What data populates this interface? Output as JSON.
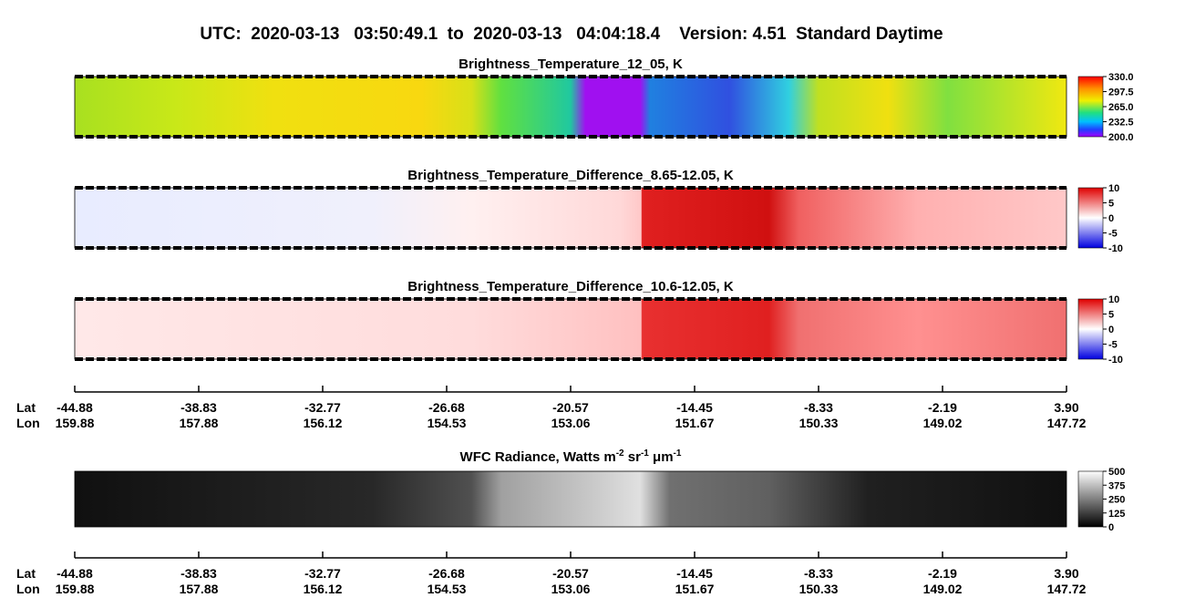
{
  "title": "UTC:  2020-03-13   03:50:49.1  to  2020-03-13   04:04:18.4    Version: 4.51  Standard Daytime",
  "panels": [
    {
      "title": "Brightness_Temperature_12_05, K",
      "colorbar": [
        "330.0",
        "297.5",
        "265.0",
        "232.5",
        "200.0"
      ]
    },
    {
      "title": "Brightness_Temperature_Difference_8.65-12.05, K",
      "colorbar": [
        "10",
        "5",
        "0",
        "-5",
        "-10"
      ]
    },
    {
      "title": "Brightness_Temperature_Difference_10.6-12.05, K",
      "colorbar": [
        "10",
        "5",
        "0",
        "-5",
        "-10"
      ]
    },
    {
      "title_parts": [
        "WFC Radiance, Watts m",
        "-2",
        " sr",
        "-1",
        " μm",
        "-1"
      ],
      "colorbar": [
        "500",
        "375",
        "250",
        "125",
        "0"
      ]
    }
  ],
  "axis": {
    "lat_label": "Lat",
    "lon_label": "Lon",
    "lat": [
      "-44.88",
      "-38.83",
      "-32.77",
      "-26.68",
      "-20.57",
      "-14.45",
      "-8.33",
      "-2.19",
      "3.90"
    ],
    "lon": [
      "159.88",
      "157.88",
      "156.12",
      "154.53",
      "153.06",
      "151.67",
      "150.33",
      "149.02",
      "147.72"
    ]
  }
}
